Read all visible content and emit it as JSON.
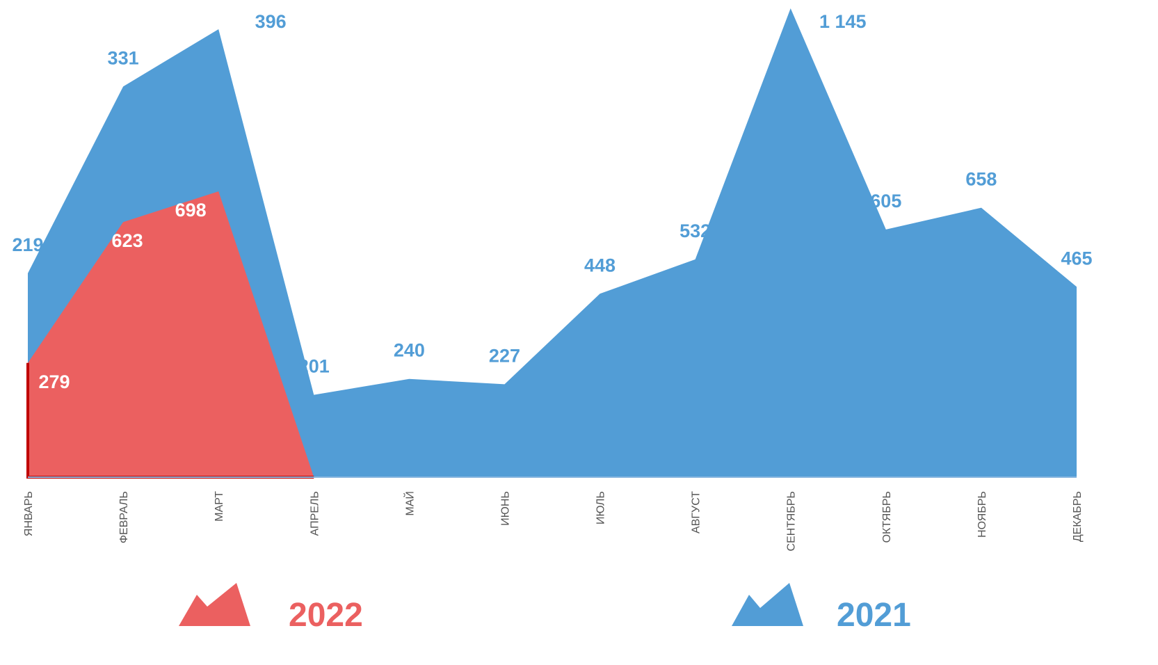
{
  "chart_data": {
    "type": "area",
    "stacked": true,
    "categories": [
      "ЯНВАРЬ",
      "ФЕВРАЛЬ",
      "МАРТ",
      "АПРЕЛЬ",
      "МАЙ",
      "ИЮНЬ",
      "ИЮЛЬ",
      "АВГУСТ",
      "СЕНТЯБРЬ",
      "ОКТЯБРЬ",
      "НОЯБРЬ",
      "ДЕКАБРЬ"
    ],
    "series": [
      {
        "name": "2022",
        "color": "#eb6060",
        "values": [
          279,
          623,
          698,
          null,
          null,
          null,
          null,
          null,
          null,
          null,
          null,
          null
        ]
      },
      {
        "name": "2021",
        "color": "#529dd6",
        "values": [
          219,
          331,
          396,
          201,
          240,
          227,
          448,
          532,
          1145,
          605,
          658,
          465
        ],
        "value_labels": [
          "219",
          "331",
          "396",
          "201",
          "240",
          "227",
          "448",
          "532",
          "1 145",
          "605",
          "658",
          "465"
        ]
      }
    ],
    "ylim": [
      0,
      1150
    ]
  }
}
